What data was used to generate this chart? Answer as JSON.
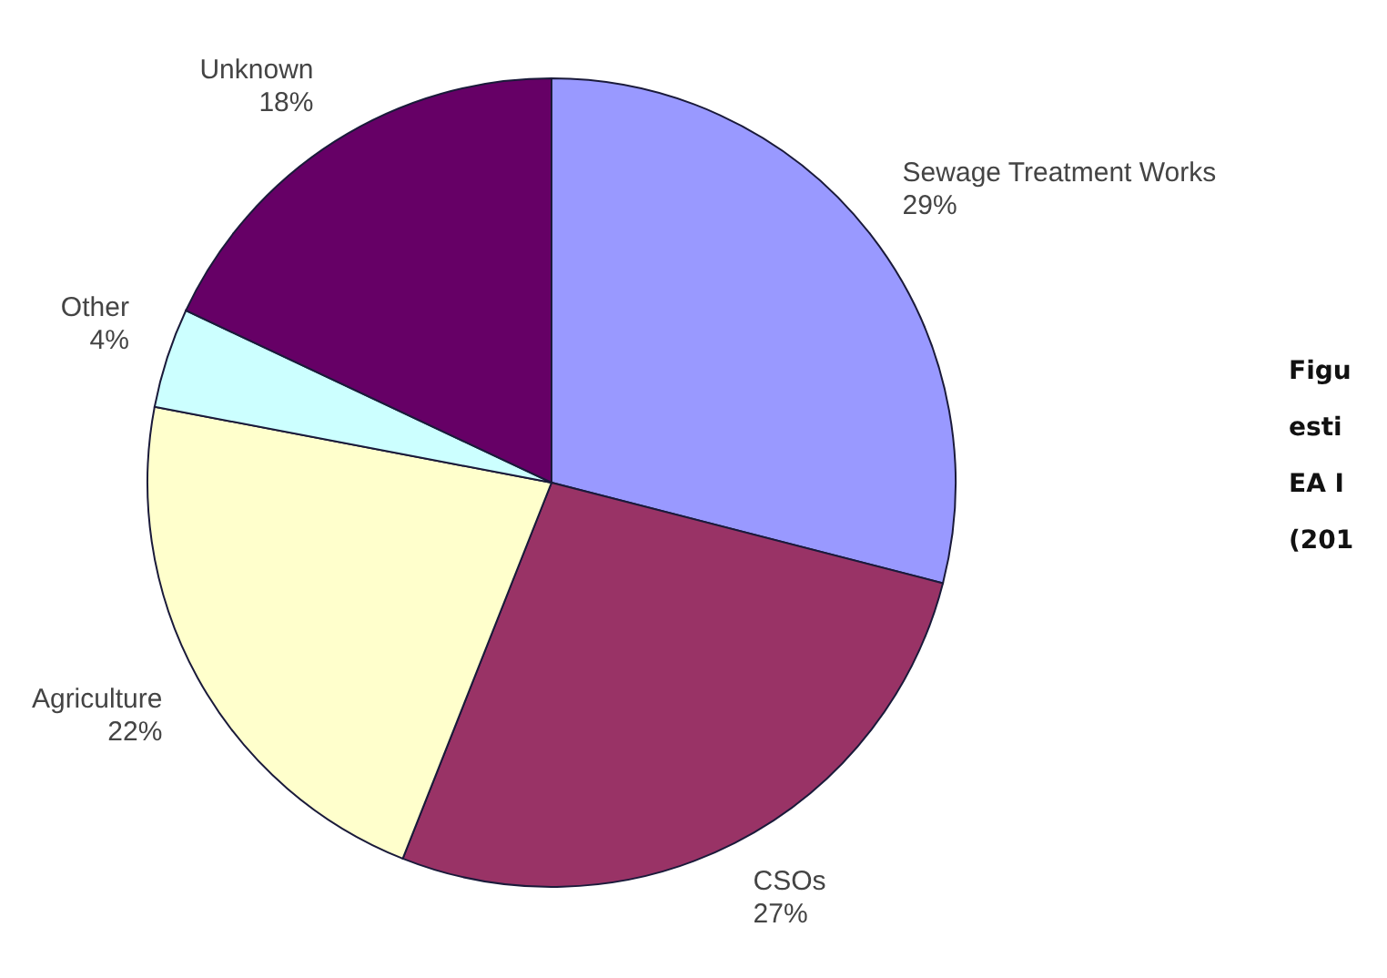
{
  "chart_data": {
    "type": "pie",
    "categories": [
      "Sewage Treatment Works",
      "CSOs",
      "Agriculture",
      "Other",
      "Unknown"
    ],
    "values": [
      29,
      27,
      22,
      4,
      18
    ],
    "value_labels": [
      "29%",
      "27%",
      "22%",
      "4%",
      "18%"
    ],
    "colors": [
      "#9999ff",
      "#993366",
      "#ffffcc",
      "#ccffff",
      "#660066"
    ],
    "annotations": [
      "Figu",
      "esti",
      "EA I",
      "(201"
    ]
  }
}
